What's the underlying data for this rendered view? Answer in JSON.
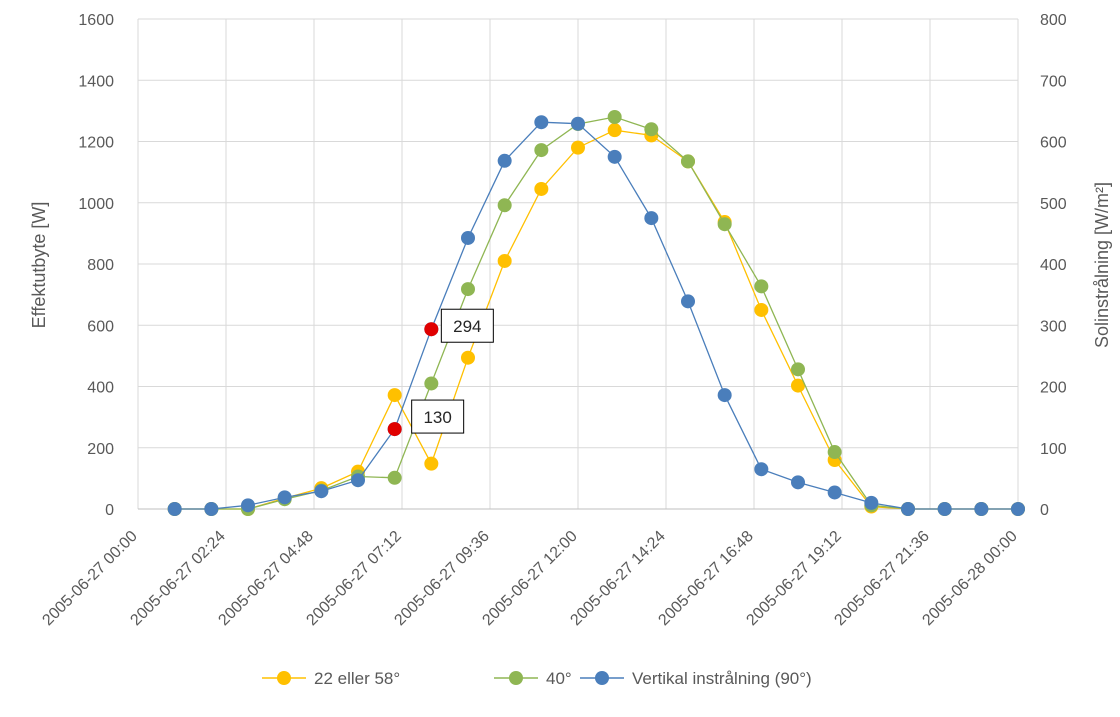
{
  "chart_data": {
    "type": "line",
    "title": "",
    "ylabel": "Effektutbyte [W]",
    "y2label": "Solinstrålning [W/m²]",
    "ylim": [
      0,
      1600
    ],
    "y2lim": [
      0,
      800
    ],
    "yticks": [
      0,
      200,
      400,
      600,
      800,
      1000,
      1200,
      1400,
      1600
    ],
    "y2ticks": [
      0,
      100,
      200,
      300,
      400,
      500,
      600,
      700,
      800
    ],
    "xlim": [
      "2005-06-27 00:00",
      "2005-06-28 00:00"
    ],
    "xtick_labels": [
      "2005-06-27 00:00",
      "2005-06-27 02:24",
      "2005-06-27 04:48",
      "2005-06-27 07:12",
      "2005-06-27 09:36",
      "2005-06-27 12:00",
      "2005-06-27 14:24",
      "2005-06-27 16:48",
      "2005-06-27 19:12",
      "2005-06-27 21:36",
      "2005-06-28 00:00"
    ],
    "grid": true,
    "legend_position": "bottom",
    "x": [
      "2005-06-27 01:00",
      "2005-06-27 02:00",
      "2005-06-27 03:00",
      "2005-06-27 04:00",
      "2005-06-27 05:00",
      "2005-06-27 06:00",
      "2005-06-27 07:00",
      "2005-06-27 08:00",
      "2005-06-27 09:00",
      "2005-06-27 10:00",
      "2005-06-27 11:00",
      "2005-06-27 12:00",
      "2005-06-27 13:00",
      "2005-06-27 14:00",
      "2005-06-27 15:00",
      "2005-06-27 16:00",
      "2005-06-27 17:00",
      "2005-06-27 18:00",
      "2005-06-27 19:00",
      "2005-06-27 20:00",
      "2005-06-27 21:00",
      "2005-06-27 22:00",
      "2005-06-27 23:00",
      "2005-06-28 00:00"
    ],
    "series": [
      {
        "name": "22 eller 58°",
        "color": "#FFC000",
        "axis": "left",
        "values": [
          0,
          0,
          0,
          35,
          68,
          122,
          372,
          148,
          494,
          810,
          1045,
          1180,
          1237,
          1220,
          1135,
          937,
          650,
          403,
          160,
          8,
          0,
          0,
          0,
          0
        ]
      },
      {
        "name": "40°",
        "color": "#8FB653",
        "axis": "left",
        "values": [
          0,
          0,
          0,
          32,
          60,
          106,
          102,
          410,
          718,
          992,
          1172,
          1257,
          1280,
          1240,
          1135,
          930,
          727,
          456,
          186,
          12,
          0,
          0,
          0,
          0
        ]
      },
      {
        "name": "Vertikal instrålning (90°)",
        "color": "#4A7EBB",
        "axis": "left",
        "values": [
          0,
          0,
          12,
          38,
          58,
          94,
          261,
          587,
          885,
          1137,
          1263,
          1258,
          1150,
          950,
          678,
          372,
          130,
          87,
          54,
          20,
          0,
          0,
          0,
          0
        ]
      }
    ],
    "highlights": [
      {
        "x": "2005-06-27 07:00",
        "y": 261,
        "color": "#E00000"
      },
      {
        "x": "2005-06-27 08:00",
        "y": 587,
        "color": "#E00000"
      }
    ],
    "annotations": [
      {
        "text": "294",
        "x": "2005-06-27 08:00",
        "y": 587
      },
      {
        "text": "130",
        "x": "2005-06-27 07:00",
        "y": 261
      }
    ]
  }
}
